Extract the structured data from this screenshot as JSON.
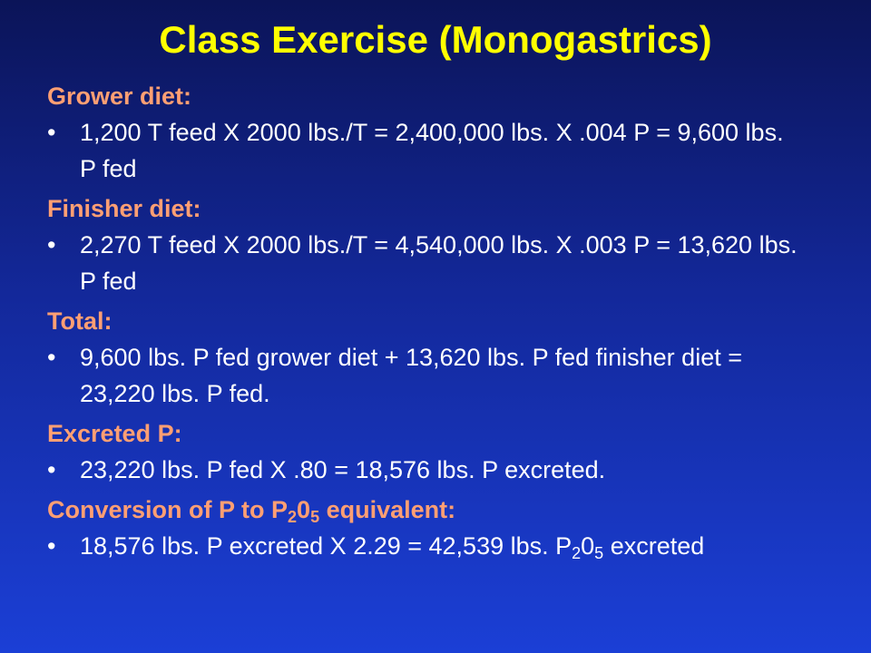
{
  "title": "Class Exercise (Monogastrics)",
  "sections": [
    {
      "heading": [
        "Grower diet:"
      ],
      "bullet": [
        "1,200 T feed X 2000 lbs./T = 2,400,000 lbs. X .004 P = 9,600 lbs. P fed"
      ]
    },
    {
      "heading": [
        "Finisher diet:"
      ],
      "bullet": [
        "2,270 T feed X 2000 lbs./T = 4,540,000 lbs. X .003 P = 13,620 lbs. P fed"
      ]
    },
    {
      "heading": [
        "Total:"
      ],
      "bullet": [
        "9,600 lbs. P fed grower diet + 13,620 lbs. P fed finisher diet = 23,220 lbs. P fed."
      ]
    },
    {
      "heading": [
        "Excreted P:"
      ],
      "bullet": [
        "23,220 lbs. P fed X .80 = 18,576 lbs. P excreted."
      ]
    },
    {
      "heading": [
        "Conversion of P to P",
        "2",
        "0",
        "5",
        " equivalent:"
      ],
      "bullet": [
        "18,576 lbs. P excreted X 2.29 = 42,539 lbs. P",
        "2",
        "0",
        "5",
        " excreted"
      ]
    }
  ]
}
